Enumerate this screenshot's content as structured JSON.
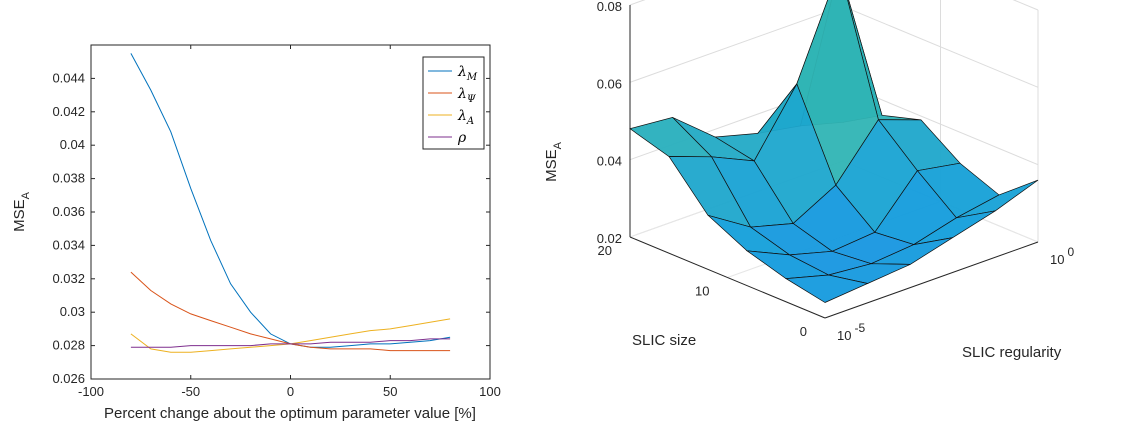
{
  "chart_data": [
    {
      "type": "line",
      "xlabel": "Percent change about the optimum parameter value [%]",
      "ylabel": "MSE",
      "ylabel_sub": "A",
      "xlim": [
        -100,
        100
      ],
      "ylim": [
        0.026,
        0.046
      ],
      "xticks": [
        -100,
        -50,
        0,
        50,
        100
      ],
      "xtick_labels": [
        "-100",
        "-50",
        "0",
        "50",
        "100"
      ],
      "yticks": [
        0.026,
        0.028,
        0.03,
        0.032,
        0.034,
        0.036,
        0.038,
        0.04,
        0.042,
        0.044
      ],
      "ytick_labels": [
        "0.026",
        "0.028",
        "0.03",
        "0.032",
        "0.034",
        "0.036",
        "0.038",
        "0.04",
        "0.042",
        "0.044"
      ],
      "grid": false,
      "legend": "top-right",
      "x": [
        -80,
        -70,
        -60,
        -50,
        -40,
        -30,
        -20,
        -10,
        0,
        10,
        20,
        30,
        40,
        50,
        60,
        70,
        80
      ],
      "series": [
        {
          "name": "λ",
          "sub": "M",
          "color": "#0072BD",
          "values": [
            0.0455,
            0.0433,
            0.0408,
            0.0374,
            0.0343,
            0.0317,
            0.03,
            0.0287,
            0.0281,
            0.0279,
            0.0279,
            0.028,
            0.0281,
            0.0281,
            0.0282,
            0.0283,
            0.0285
          ]
        },
        {
          "name": "λ",
          "sub": "Ψ",
          "color": "#D95319",
          "values": [
            0.0324,
            0.0313,
            0.0305,
            0.0299,
            0.0295,
            0.0291,
            0.0287,
            0.0284,
            0.0281,
            0.0279,
            0.0278,
            0.0278,
            0.0278,
            0.0277,
            0.0277,
            0.0277,
            0.0277
          ]
        },
        {
          "name": "λ",
          "sub": "A",
          "color": "#EDB120",
          "values": [
            0.0287,
            0.0278,
            0.0276,
            0.0276,
            0.0277,
            0.0278,
            0.0279,
            0.028,
            0.0281,
            0.0283,
            0.0285,
            0.0287,
            0.0289,
            0.029,
            0.0292,
            0.0294,
            0.0296
          ]
        },
        {
          "name": "ρ",
          "sub": "",
          "color": "#7E2F8E",
          "values": [
            0.0279,
            0.0279,
            0.0279,
            0.028,
            0.028,
            0.028,
            0.028,
            0.0281,
            0.0281,
            0.0281,
            0.0282,
            0.0282,
            0.0282,
            0.0283,
            0.0283,
            0.0284,
            0.0284
          ]
        }
      ]
    },
    {
      "type": "surface",
      "xlabel": "SLIC regularity",
      "ylabel": "SLIC size",
      "zlabel": "MSE",
      "zlabel_sub": "A",
      "x_scale": "log",
      "xticks": [
        "10",
        "10"
      ],
      "xtick_exponents": [
        "-5",
        "0"
      ],
      "yticks": [
        "0",
        "10",
        "20"
      ],
      "zlim": [
        0.02,
        0.08
      ],
      "zticks": [
        "0.02",
        "0.04",
        "0.06",
        "0.08"
      ],
      "grid": true,
      "colormap": "parula",
      "regularity_exponents": [
        -5,
        -4,
        -3,
        -2,
        -1,
        0
      ],
      "sizes": [
        0,
        4,
        8,
        12,
        16,
        20
      ],
      "z": [
        [
          0.024,
          0.025,
          0.026,
          0.029,
          0.032,
          0.036
        ],
        [
          0.026,
          0.023,
          0.022,
          0.023,
          0.026,
          0.028
        ],
        [
          0.029,
          0.024,
          0.021,
          0.022,
          0.034,
          0.032
        ],
        [
          0.034,
          0.027,
          0.024,
          0.03,
          0.043,
          0.039
        ],
        [
          0.045,
          0.041,
          0.036,
          0.052,
          0.078,
          0.036
        ],
        [
          0.048,
          0.047,
          0.038,
          0.035,
          0.033,
          0.03
        ]
      ]
    }
  ]
}
